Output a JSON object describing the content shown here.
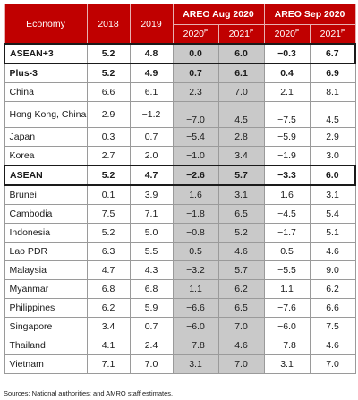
{
  "header": {
    "economy": "Economy",
    "y2018": "2018",
    "y2019": "2019",
    "areo_aug": "AREO Aug 2020",
    "areo_sep": "AREO Sep 2020",
    "y2020": "2020",
    "y2021": "2021",
    "proj_mark": "P"
  },
  "rows": [
    {
      "name": "ASEAN+3",
      "v": [
        "5.2",
        "4.8",
        "0.0",
        "6.0",
        "−0.3",
        "6.7"
      ]
    },
    {
      "name": "Plus-3",
      "v": [
        "5.2",
        "4.9",
        "0.7",
        "6.1",
        "0.4",
        "6.9"
      ]
    },
    {
      "name": "China",
      "v": [
        "6.6",
        "6.1",
        "2.3",
        "7.0",
        "2.1",
        "8.1"
      ]
    },
    {
      "name": "Hong Kong, China",
      "v": [
        "2.9",
        "−1.2",
        "−7.0",
        "4.5",
        "−7.5",
        "4.5"
      ]
    },
    {
      "name": "Japan",
      "v": [
        "0.3",
        "0.7",
        "−5.4",
        "2.8",
        "−5.9",
        "2.9"
      ]
    },
    {
      "name": "Korea",
      "v": [
        "2.7",
        "2.0",
        "−1.0",
        "3.4",
        "−1.9",
        "3.0"
      ]
    },
    {
      "name": "ASEAN",
      "v": [
        "5.2",
        "4.7",
        "−2.6",
        "5.7",
        "−3.3",
        "6.0"
      ]
    },
    {
      "name": "Brunei",
      "v": [
        "0.1",
        "3.9",
        "1.6",
        "3.1",
        "1.6",
        "3.1"
      ]
    },
    {
      "name": "Cambodia",
      "v": [
        "7.5",
        "7.1",
        "−1.8",
        "6.5",
        "−4.5",
        "5.4"
      ]
    },
    {
      "name": "Indonesia",
      "v": [
        "5.2",
        "5.0",
        "−0.8",
        "5.2",
        "−1.7",
        "5.1"
      ]
    },
    {
      "name": "Lao PDR",
      "v": [
        "6.3",
        "5.5",
        "0.5",
        "4.6",
        "0.5",
        "4.6"
      ]
    },
    {
      "name": "Malaysia",
      "v": [
        "4.7",
        "4.3",
        "−3.2",
        "5.7",
        "−5.5",
        "9.0"
      ]
    },
    {
      "name": "Myanmar",
      "v": [
        "6.8",
        "6.8",
        "1.1",
        "6.2",
        "1.1",
        "6.2"
      ]
    },
    {
      "name": "Philippines",
      "v": [
        "6.2",
        "5.9",
        "−6.6",
        "6.5",
        "−7.6",
        "6.6"
      ]
    },
    {
      "name": "Singapore",
      "v": [
        "3.4",
        "0.7",
        "−6.0",
        "7.0",
        "−6.0",
        "7.5"
      ]
    },
    {
      "name": "Thailand",
      "v": [
        "4.1",
        "2.4",
        "−7.8",
        "4.6",
        "−7.8",
        "4.6"
      ]
    },
    {
      "name": "Vietnam",
      "v": [
        "7.1",
        "7.0",
        "3.1",
        "7.0",
        "3.1",
        "7.0"
      ]
    }
  ],
  "note": "Sources: National authorities; and AMRO staff estimates."
}
